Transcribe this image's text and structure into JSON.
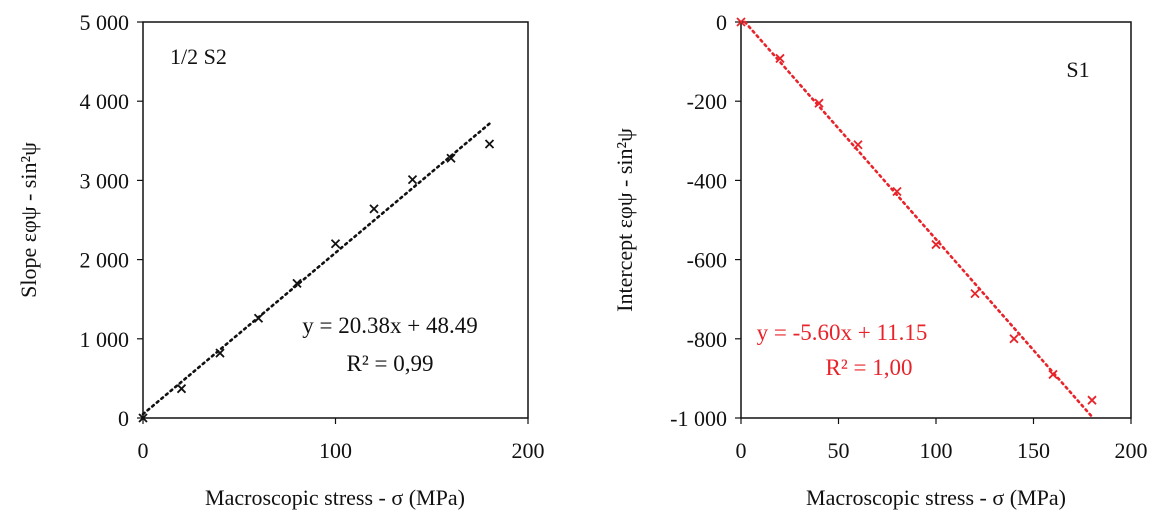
{
  "chart_data": [
    {
      "type": "scatter",
      "panel_label": "1/2 S2",
      "xlabel": "Macroscopic stress - σ (MPa)",
      "ylabel": "Slope εφψ - sin²ψ",
      "xlim": [
        0,
        200
      ],
      "ylim": [
        0,
        5000
      ],
      "x_ticks": [
        0,
        100,
        200
      ],
      "y_ticks": [
        0,
        1000,
        2000,
        3000,
        4000,
        5000
      ],
      "x_tick_labels": [
        "0",
        "100",
        "200"
      ],
      "y_tick_labels": [
        "0",
        "1 000",
        "2 000",
        "3 000",
        "4 000",
        "5 000"
      ],
      "color": "#111111",
      "marker": "x",
      "grid": false,
      "x": [
        0,
        20,
        40,
        60,
        80,
        100,
        120,
        140,
        160,
        180
      ],
      "y": [
        0,
        370,
        820,
        1260,
        1700,
        2200,
        2640,
        3010,
        3280,
        3460
      ],
      "trendline": {
        "slope": 20.38,
        "intercept": 48.49,
        "style": "dotted"
      },
      "equation": "y = 20.38x + 48.49",
      "r2": "R² = 0,99"
    },
    {
      "type": "scatter",
      "panel_label": "S1",
      "xlabel": "Macroscopic stress - σ (MPa)",
      "ylabel": "Intercept εφψ - sin²ψ",
      "xlim": [
        0,
        200
      ],
      "ylim": [
        -1000,
        0
      ],
      "x_ticks": [
        0,
        50,
        100,
        150,
        200
      ],
      "y_ticks": [
        0,
        -200,
        -400,
        -600,
        -800,
        -1000
      ],
      "x_tick_labels": [
        "0",
        "50",
        "100",
        "150",
        "200"
      ],
      "y_tick_labels": [
        "0",
        "-200",
        "-400",
        "-600",
        "-800",
        "-1 000"
      ],
      "color": "#e8232a",
      "marker": "x",
      "grid": false,
      "x": [
        0,
        20,
        40,
        60,
        80,
        100,
        120,
        140,
        160,
        180
      ],
      "y": [
        0,
        -92,
        -205,
        -310,
        -428,
        -562,
        -686,
        -800,
        -890,
        -955
      ],
      "trendline": {
        "slope": -5.6,
        "intercept": 11.15,
        "style": "dotted"
      },
      "equation": "y = -5.60x + 11.15",
      "r2": "R² = 1,00"
    }
  ]
}
